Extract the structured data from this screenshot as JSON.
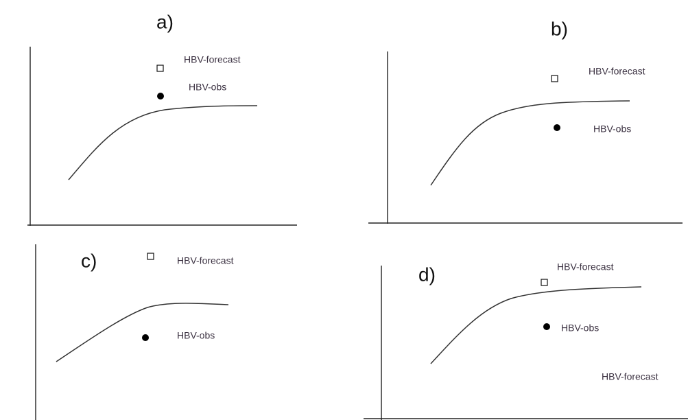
{
  "panels": [
    {
      "label": "a)",
      "forecast": "HBV-forecast",
      "obs": "HBV-obs"
    },
    {
      "label": "b)",
      "forecast": "HBV-forecast",
      "obs": "HBV-obs"
    },
    {
      "label": "c)",
      "forecast": "HBV-forecast",
      "obs": "HBV-obs"
    },
    {
      "label": "d)",
      "forecast": "HBV-forecast",
      "obs": "HBV-obs",
      "extra": "HBV-forecast"
    }
  ]
}
